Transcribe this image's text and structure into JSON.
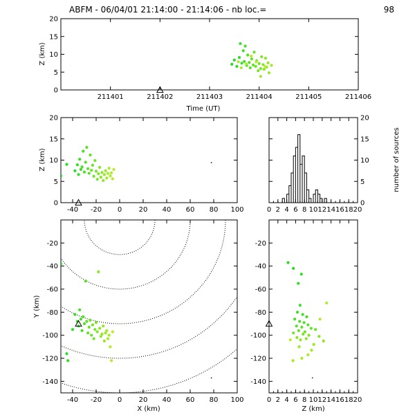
{
  "title": "ABFM - 06/04/01 21:14:00 - 21:14:06 - nb loc.=",
  "nb_loc": "98",
  "colors": {
    "early": "#22dd22",
    "late": "#bbee22",
    "axis": "#000000",
    "background": "#ffffff"
  },
  "chart_data": [
    {
      "id": "time-height",
      "type": "scatter",
      "xlabel": "Time (UT)",
      "ylabel": "Z (km)",
      "xlim": [
        211400,
        211406
      ],
      "ylim": [
        0,
        20
      ],
      "xticks": [
        "211401",
        "211402",
        "211403",
        "211404",
        "211405",
        "211406"
      ],
      "yticks": [
        "0",
        "5",
        "10",
        "15",
        "20"
      ],
      "station_marker": {
        "x": 211402.0,
        "y": 0
      },
      "points": [
        [
          211403.45,
          7.2
        ],
        [
          211403.5,
          8.4
        ],
        [
          211403.55,
          6.6
        ],
        [
          211403.6,
          9.1
        ],
        [
          211403.62,
          13.0
        ],
        [
          211403.65,
          7.5
        ],
        [
          211403.68,
          11.0
        ],
        [
          211403.7,
          8.0
        ],
        [
          211403.72,
          12.3
        ],
        [
          211403.75,
          6.9
        ],
        [
          211403.77,
          9.8
        ],
        [
          211403.8,
          7.7
        ],
        [
          211403.82,
          6.2
        ],
        [
          211403.85,
          8.7
        ],
        [
          211403.88,
          7.0
        ],
        [
          211403.9,
          10.6
        ],
        [
          211403.93,
          6.6
        ],
        [
          211403.95,
          8.2
        ],
        [
          211403.98,
          5.4
        ],
        [
          211404.0,
          7.4
        ],
        [
          211404.03,
          6.0
        ],
        [
          211404.05,
          9.3
        ],
        [
          211404.08,
          7.1
        ],
        [
          211404.1,
          5.8
        ],
        [
          211404.13,
          8.9
        ],
        [
          211404.15,
          6.4
        ],
        [
          211404.18,
          7.6
        ],
        [
          211404.2,
          4.8
        ],
        [
          211404.03,
          3.8
        ],
        [
          211404.25,
          6.9
        ],
        [
          211403.58,
          7.9
        ],
        [
          211403.64,
          6.2
        ],
        [
          211403.74,
          7.3
        ],
        [
          211403.84,
          9.5
        ],
        [
          211403.94,
          7.9
        ],
        [
          211404.12,
          6.6
        ]
      ]
    },
    {
      "id": "x-height",
      "type": "scatter",
      "xlabel": "",
      "ylabel": "Z (km)",
      "xlim": [
        -50,
        100
      ],
      "ylim": [
        0,
        20
      ],
      "xticks": [
        "-40",
        "-20",
        "0",
        "20",
        "40",
        "60",
        "80",
        "100"
      ],
      "yticks": [
        "0",
        "5",
        "10",
        "15",
        "20"
      ],
      "station_marker": {
        "x": -35,
        "y": 0
      },
      "points": [
        [
          -50,
          6.3
        ],
        [
          -45,
          9.0
        ],
        [
          -38,
          7.5
        ],
        [
          -36,
          8.9
        ],
        [
          -35,
          6.6
        ],
        [
          -34,
          10.2
        ],
        [
          -33,
          7.8
        ],
        [
          -32,
          8.4
        ],
        [
          -31,
          12.1
        ],
        [
          -30,
          7.2
        ],
        [
          -29,
          9.5
        ],
        [
          -28,
          13.0
        ],
        [
          -27,
          8.0
        ],
        [
          -26,
          6.9
        ],
        [
          -25,
          11.2
        ],
        [
          -24,
          7.6
        ],
        [
          -23,
          8.8
        ],
        [
          -22,
          6.2
        ],
        [
          -21,
          9.9
        ],
        [
          -20,
          7.4
        ],
        [
          -19,
          5.5
        ],
        [
          -18,
          6.8
        ],
        [
          -17,
          8.3
        ],
        [
          -16,
          6.0
        ],
        [
          -15,
          7.1
        ],
        [
          -14,
          5.2
        ],
        [
          -13,
          6.6
        ],
        [
          -12,
          7.5
        ],
        [
          -11,
          5.8
        ],
        [
          -10,
          6.9
        ],
        [
          -9,
          8.1
        ],
        [
          -8,
          6.3
        ],
        [
          -7,
          7.0
        ],
        [
          -6,
          5.6
        ],
        [
          -5,
          7.8
        ],
        [
          78,
          9.4
        ]
      ]
    },
    {
      "id": "height-histogram",
      "type": "bar",
      "xlabel": "",
      "ylabel": "number of sources",
      "xlim": [
        0,
        20
      ],
      "ylim": [
        0,
        20
      ],
      "xticks": [
        "0",
        "2",
        "4",
        "6",
        "8",
        "10",
        "12",
        "14",
        "16",
        "18",
        "20"
      ],
      "yticks": [
        "0",
        "5",
        "10",
        "15",
        "20"
      ],
      "bin_width": 0.5,
      "bins": [
        {
          "start": 3.0,
          "count": 1
        },
        {
          "start": 4.0,
          "count": 2
        },
        {
          "start": 4.5,
          "count": 4
        },
        {
          "start": 5.0,
          "count": 7
        },
        {
          "start": 5.5,
          "count": 11
        },
        {
          "start": 6.0,
          "count": 13
        },
        {
          "start": 6.5,
          "count": 16
        },
        {
          "start": 7.0,
          "count": 9
        },
        {
          "start": 7.5,
          "count": 11
        },
        {
          "start": 8.0,
          "count": 7
        },
        {
          "start": 8.5,
          "count": 3
        },
        {
          "start": 9.0,
          "count": 1
        },
        {
          "start": 10.0,
          "count": 2
        },
        {
          "start": 10.5,
          "count": 3
        },
        {
          "start": 11.0,
          "count": 2
        },
        {
          "start": 11.5,
          "count": 1
        },
        {
          "start": 12.5,
          "count": 1
        }
      ]
    },
    {
      "id": "plan-view",
      "type": "scatter",
      "xlabel": "X (km)",
      "ylabel": "Y (km)",
      "xlim": [
        -50,
        100
      ],
      "ylim": [
        -150,
        0
      ],
      "xticks": [
        "-40",
        "-20",
        "0",
        "20",
        "40",
        "60",
        "80",
        "100"
      ],
      "yticks": [
        "-20",
        "-40",
        "-60",
        "-80",
        "-100",
        "-120",
        "-140"
      ],
      "range_rings_center": [
        0,
        0
      ],
      "range_rings_km": [
        30,
        60,
        90,
        120,
        150
      ],
      "station_marker": {
        "x": -35,
        "y": -90
      },
      "points": [
        [
          -50,
          -38
        ],
        [
          -45,
          -116
        ],
        [
          -44,
          -122
        ],
        [
          -40,
          -95
        ],
        [
          -38,
          -82
        ],
        [
          -36,
          -88
        ],
        [
          -35,
          -92
        ],
        [
          -34,
          -78
        ],
        [
          -33,
          -86
        ],
        [
          -32,
          -96
        ],
        [
          -31,
          -84
        ],
        [
          -30,
          -90
        ],
        [
          -29,
          -53
        ],
        [
          -28,
          -88
        ],
        [
          -27,
          -98
        ],
        [
          -26,
          -93
        ],
        [
          -25,
          -87
        ],
        [
          -24,
          -100
        ],
        [
          -23,
          -91
        ],
        [
          -22,
          -103
        ],
        [
          -21,
          -95
        ],
        [
          -20,
          -89
        ],
        [
          -19,
          -97
        ],
        [
          -18,
          -45
        ],
        [
          -17,
          -94
        ],
        [
          -16,
          -101
        ],
        [
          -15,
          -99
        ],
        [
          -14,
          -92
        ],
        [
          -13,
          -105
        ],
        [
          -12,
          -98
        ],
        [
          -11,
          -96
        ],
        [
          -10,
          -103
        ],
        [
          -9,
          -100
        ],
        [
          -8,
          -110
        ],
        [
          -7,
          -122
        ],
        [
          -6,
          -97
        ],
        [
          78,
          -137
        ]
      ]
    },
    {
      "id": "height-y",
      "type": "scatter",
      "xlabel": "Z (km)",
      "ylabel": "",
      "xlim": [
        0,
        20
      ],
      "ylim": [
        -150,
        0
      ],
      "xticks": [
        "0",
        "2",
        "4",
        "6",
        "8",
        "10",
        "12",
        "14",
        "16",
        "18",
        "20"
      ],
      "yticks": [
        "-20",
        "-40",
        "-60",
        "-80",
        "-100",
        "-120",
        "-140"
      ],
      "station_marker": {
        "x": 0,
        "y": -90
      },
      "points": [
        [
          4.3,
          -37
        ],
        [
          5.5,
          -42
        ],
        [
          6.6,
          -55
        ],
        [
          7.3,
          -47
        ],
        [
          7.0,
          -74
        ],
        [
          6.4,
          -80
        ],
        [
          7.6,
          -82
        ],
        [
          8.5,
          -84
        ],
        [
          5.8,
          -86
        ],
        [
          6.9,
          -88
        ],
        [
          7.9,
          -89
        ],
        [
          8.8,
          -91
        ],
        [
          6.2,
          -92
        ],
        [
          7.4,
          -93
        ],
        [
          9.5,
          -94
        ],
        [
          10.5,
          -95
        ],
        [
          6.7,
          -96
        ],
        [
          8.1,
          -97
        ],
        [
          5.5,
          -98
        ],
        [
          7.7,
          -99
        ],
        [
          9.0,
          -100
        ],
        [
          11.3,
          -101
        ],
        [
          6.3,
          -102
        ],
        [
          8.4,
          -103
        ],
        [
          7.1,
          -104
        ],
        [
          12.3,
          -105
        ],
        [
          10.1,
          -108
        ],
        [
          6.8,
          -110
        ],
        [
          9.6,
          -113
        ],
        [
          5.4,
          -122
        ],
        [
          8.8,
          -117
        ],
        [
          7.4,
          -120
        ],
        [
          13.0,
          -72
        ],
        [
          11.5,
          -86
        ],
        [
          4.8,
          -104
        ],
        [
          9.8,
          -137
        ]
      ]
    }
  ]
}
